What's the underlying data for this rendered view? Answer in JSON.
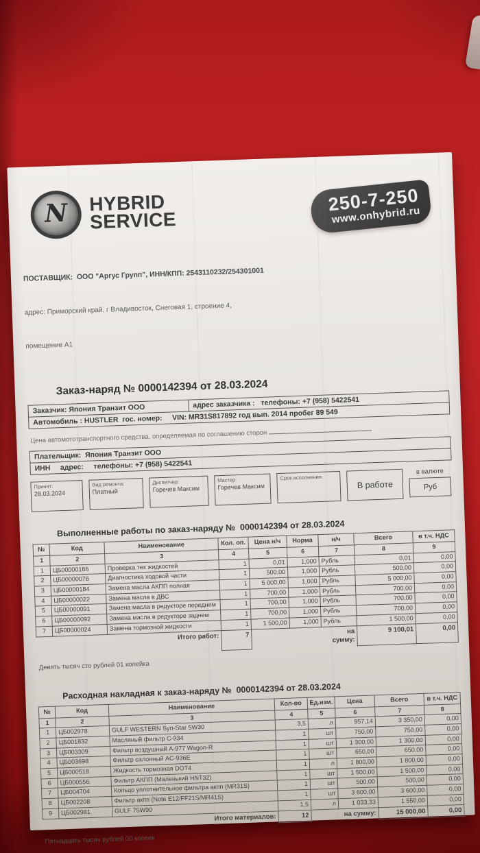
{
  "colors": {
    "background_red": "#b71d1e",
    "background_dark_red": "#841010",
    "paper": "#e5e1dc",
    "badge_gray": "#403f3e",
    "ink": "#3d3c3a"
  },
  "header": {
    "logo_letter": "N",
    "brand_line1": "HYBRID",
    "brand_line2": "SERVICE",
    "phone": "250-7-250",
    "website": "www.onhybrid.ru"
  },
  "supplier": {
    "line1": "ПОСТАВЩИК:  ООО \"Аргус Групп\", ИНН/КПП: 2543110232/254301001",
    "line2": "адрес: Приморский край, г Владивосток, Снеговая 1, строение 4,",
    "line3": "помещение А1"
  },
  "doc_title": "Заказ-наряд № 0000142394 от 28.03.2024",
  "customer": {
    "row1_left": "Заказчик: Япония Транзит ООО",
    "row1_right": "адрес заказчика :   телефоны: +7 (958) 5422541",
    "row2": "Автомобиль : HUSTLER  гос. номер:     VIN: MR31S817892 год вып. 2014 пробег 89 549"
  },
  "price_line": "Цена автомототранспортного средства, определяемая по соглашению сторон ",
  "payer": {
    "row1": "Плательщик:  Япония Транзит ООО",
    "row2": "ИНН     адрес:     телефоны: +7 (958) 5422541"
  },
  "status": {
    "boxes": [
      {
        "label": "Принят:",
        "value": "28.03.2024"
      },
      {
        "label": "Вид ремонта:",
        "value": "Платный"
      },
      {
        "label": "Диспетчер:",
        "value": "Горечев Максим"
      },
      {
        "label": "Мастер:",
        "value": "Горечев Максим"
      },
      {
        "label": "Срок исполнения:",
        "value": ""
      },
      {
        "label": "",
        "value": "В работе"
      }
    ],
    "currency_label": "в валюте",
    "currency_value": "Руб"
  },
  "works_title": "Выполненные работы по заказ-наряду №  0000142394 от 28.03.2024",
  "works_table": {
    "headers": [
      "№",
      "Код",
      "Наименование",
      "Кол. оп.",
      "Цена н/ч",
      "Норма",
      "н/ч",
      "Всего",
      "в т.ч. НДС"
    ],
    "col_numbers": [
      "1",
      "2",
      "3",
      "4",
      "5",
      "6",
      "7",
      "8",
      "9"
    ],
    "rows": [
      [
        "1",
        "ЦБ00000166",
        "Проверка тех жидкостей",
        "1",
        "0,01",
        "1,000",
        "Рубль",
        "0,01",
        "0,00"
      ],
      [
        "2",
        "ЦБ00000076",
        "Диагностика ходовой части",
        "1",
        "500,00",
        "1,000",
        "Рубль",
        "500,00",
        "0,00"
      ],
      [
        "3",
        "ЦБ00000184",
        "Замена масла АКПП полная",
        "1",
        "5 000,00",
        "1,000",
        "Рубль",
        "5 000,00",
        "0,00"
      ],
      [
        "4",
        "ЦБ00000022",
        "Замена масла в ДВС",
        "1",
        "700,00",
        "1,000",
        "Рубль",
        "700,00",
        "0,00"
      ],
      [
        "5",
        "ЦБ00000091",
        "Замена масла в редукторе переднем",
        "1",
        "700,00",
        "1,000",
        "Рубль",
        "700,00",
        "0,00"
      ],
      [
        "6",
        "ЦБ00000092",
        "Замена масла в редукторе заднем",
        "1",
        "700,00",
        "1,000",
        "Рубль",
        "700,00",
        "0,00"
      ],
      [
        "7",
        "ЦБ00000024",
        "Замена тормозной жидкости",
        "1",
        "1 500,00",
        "1,000",
        "Рубль",
        "1 500,00",
        "0,00"
      ]
    ],
    "total_label": "Итого работ:",
    "total_count": "7",
    "sum_label": "на сумму:",
    "total_sum": "9 100,01",
    "total_vat": "0,00"
  },
  "works_words": "Девять тысяч сто рублей 01 копейка",
  "materials_title": "Расходная накладная к заказ-наряду №  0000142394 от 28.03.2024",
  "materials_table": {
    "headers": [
      "№",
      "Код",
      "Наименование",
      "Кол-во",
      "Ед.изм.",
      "Цена",
      "Всего",
      "в т.ч. НДС"
    ],
    "col_numbers": [
      "1",
      "2",
      "3",
      "4",
      "5",
      "6",
      "7",
      "8"
    ],
    "rows": [
      [
        "1",
        "ЦБ002978",
        "GULF WESTERN Syn-Star 5W30",
        "3,5",
        "л",
        "957,14",
        "3 350,00",
        "0,00"
      ],
      [
        "2",
        "ЦБ001832",
        "Масляный фильтр C-934",
        "1",
        "шт",
        "750,00",
        "750,00",
        "0,00"
      ],
      [
        "3",
        "ЦБ003309",
        "Фильтр воздушный A-977 Wagon-R",
        "1",
        "шт",
        "1 300,00",
        "1 300,00",
        "0,00"
      ],
      [
        "4",
        "ЦБ003698",
        "Фильтр салонный AC-936E",
        "1",
        "шт",
        "650,00",
        "650,00",
        "0,00"
      ],
      [
        "5",
        "ЦБ000518",
        "Жидкость тормозная DOT4",
        "1",
        "л",
        "1 800,00",
        "1 800,00",
        "0,00"
      ],
      [
        "6",
        "ЦБ000556",
        "Фильтр АКПП (Маленький HNT32)",
        "1",
        "шт",
        "1 500,00",
        "1 500,00",
        "0,00"
      ],
      [
        "7",
        "ЦБ004704",
        "Кольцо уплотнительное фильтра акпп (MR31S)",
        "1",
        "шт",
        "500,00",
        "500,00",
        "0,00"
      ],
      [
        "8",
        "ЦБ002208",
        "Фильтр акпп (Note E12/FF21S/MR41S)",
        "1",
        "шт",
        "3 600,00",
        "3 600,00",
        "0,00"
      ],
      [
        "9",
        "ЦБ002981",
        "GULF 75W90",
        "1,5",
        "л",
        "1 033,33",
        "1 550,00",
        "0,00"
      ]
    ],
    "total_label": "Итого материалов:",
    "total_count": "12",
    "sum_label": "на сумму:",
    "total_sum": "15 000,00",
    "total_vat": "0,00"
  },
  "materials_words": "Пятнадцать тысяч рублей 00 копеек"
}
